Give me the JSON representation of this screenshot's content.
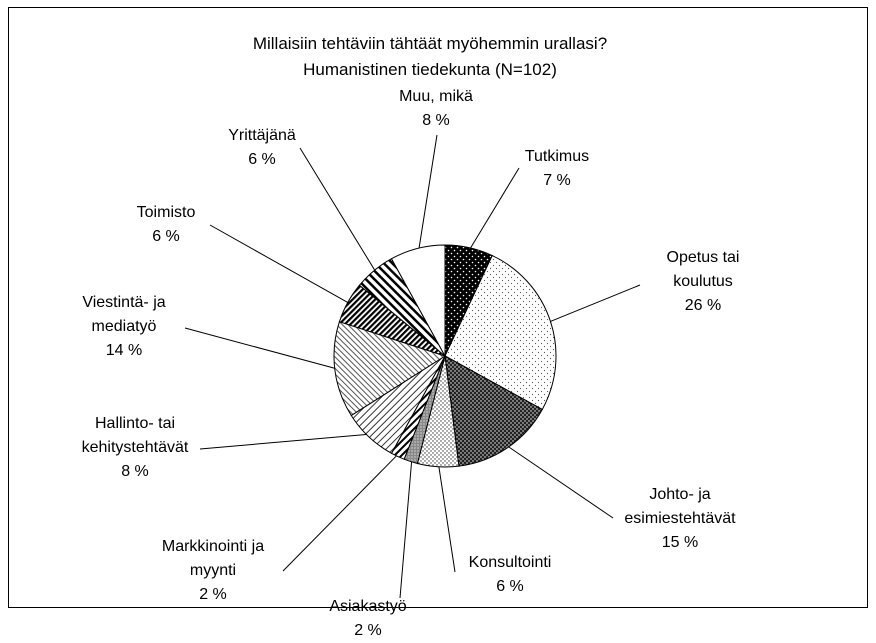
{
  "chart_data": {
    "type": "pie",
    "title": "Millaisiin tehtäviin tähtäät myöhemmin urallasi?",
    "subtitle": "Humanistinen tiedekunta (N=102)",
    "categories": [
      "Tutkimus",
      "Opetus tai koulutus",
      "Johto- ja esimiestehtävät",
      "Konsultointi",
      "Asiakastyö",
      "Markkinointi ja myynti",
      "Hallinto- tai kehitystehtävät",
      "Viestintä- ja mediatyö",
      "Toimisto",
      "Yrittäjänä",
      "Muu, mikä"
    ],
    "values": [
      7,
      26,
      15,
      6,
      2,
      2,
      8,
      14,
      6,
      6,
      8
    ],
    "value_labels": [
      "7 %",
      "26 %",
      "15 %",
      "6 %",
      "2 %",
      "2 %",
      "8 %",
      "14 %",
      "6 %",
      "6 %",
      "8 %"
    ]
  }
}
